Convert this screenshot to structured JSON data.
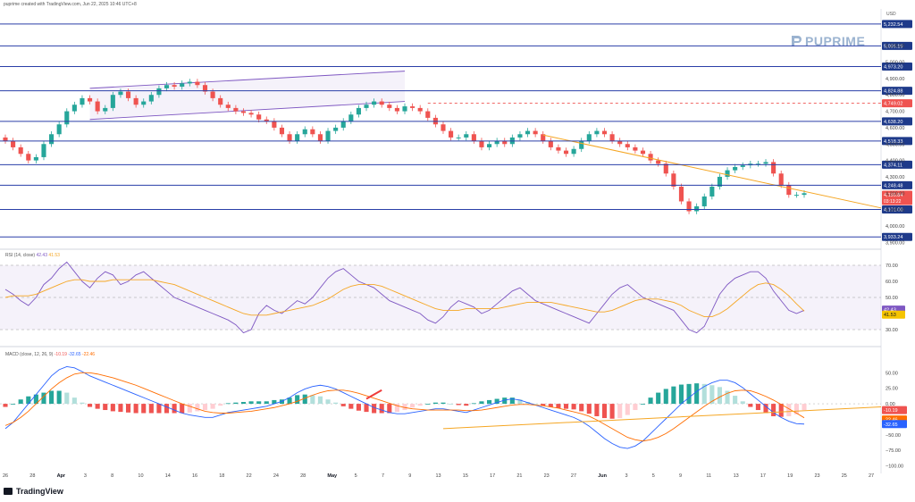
{
  "header": {
    "created": "puprime created with TradingView.com, Jun 22, 2025 10:46 UTC+8",
    "currency": "USD",
    "watermark": "PUPRIME",
    "footer": "TradingView"
  },
  "chart_data": [
    {
      "type": "candlestick",
      "title": "",
      "x_tick_labels": [
        "26",
        "28",
        "Apr",
        "3",
        "8",
        "10",
        "14",
        "16",
        "18",
        "22",
        "24",
        "28",
        "May",
        "5",
        "7",
        "9",
        "13",
        "15",
        "17",
        "21",
        "23",
        "27",
        "Jun",
        "3",
        "5",
        "9",
        "11",
        "13",
        "17",
        "19",
        "23",
        "25",
        "27"
      ],
      "y_tick_labels": [
        "5,100.00",
        "5,000.00",
        "4,900.00",
        "4,800.00",
        "4,700.00",
        "4,600.00",
        "4,500.00",
        "4,400.00",
        "4,300.00",
        "4,200.00",
        "4,100.00",
        "4,000.00",
        "3,900.00"
      ],
      "ylim": [
        3880,
        5270
      ],
      "horizontal_levels": [
        5232.54,
        5099.19,
        4973.2,
        4824.88,
        4638.2,
        4518.33,
        4374.11,
        4248.48,
        4101.0,
        3933.24
      ],
      "level_labels": [
        "5,232.54",
        "5,099.19",
        "4,973.20",
        "4,824.88",
        "4,638.20",
        "4,518.33",
        "4,374.11",
        "4,248.48",
        "4,101.00",
        "3,933.24"
      ],
      "resistance_dashed": 4749.02,
      "resistance_label": "4,749.02",
      "last_price": 4190.84,
      "last_price_label": "4,190.84",
      "countdown": "03:13:22",
      "closes": [
        4520,
        4480,
        4440,
        4400,
        4420,
        4500,
        4560,
        4620,
        4700,
        4740,
        4780,
        4760,
        4700,
        4720,
        4800,
        4820,
        4780,
        4740,
        4760,
        4800,
        4840,
        4860,
        4850,
        4870,
        4880,
        4860,
        4820,
        4780,
        4740,
        4720,
        4700,
        4690,
        4680,
        4650,
        4640,
        4600,
        4560,
        4520,
        4560,
        4590,
        4560,
        4520,
        4580,
        4600,
        4640,
        4680,
        4720,
        4740,
        4760,
        4740,
        4720,
        4700,
        4730,
        4720,
        4700,
        4660,
        4620,
        4580,
        4540,
        4540,
        4560,
        4520,
        4480,
        4500,
        4520,
        4500,
        4540,
        4560,
        4580,
        4560,
        4520,
        4480,
        4460,
        4440,
        4470,
        4520,
        4560,
        4580,
        4560,
        4520,
        4500,
        4480,
        4460,
        4440,
        4400,
        4380,
        4320,
        4240,
        4150,
        4090,
        4120,
        4180,
        4240,
        4300,
        4340,
        4360,
        4370,
        4380,
        4380,
        4390,
        4320,
        4250,
        4190,
        4190,
        4200
      ]
    },
    {
      "type": "line",
      "title": "RSI (14, close)",
      "series": [
        {
          "name": "RSI",
          "last": 42.43,
          "last_label": "42.43",
          "color": "#7e57c2"
        },
        {
          "name": "RSI MA",
          "last": 41.53,
          "last_label": "41.53",
          "color": "#f5a623"
        }
      ],
      "bands": [
        70,
        50,
        30
      ],
      "y_tick_labels": [
        "70.00",
        "60.00",
        "50.00",
        "40.00",
        "30.00"
      ],
      "ylim": [
        25,
        75
      ],
      "rsi": [
        55,
        52,
        48,
        45,
        50,
        58,
        62,
        68,
        72,
        66,
        60,
        56,
        62,
        66,
        64,
        58,
        60,
        64,
        66,
        62,
        58,
        54,
        50,
        48,
        46,
        44,
        42,
        40,
        38,
        36,
        33,
        28,
        30,
        40,
        45,
        42,
        40,
        44,
        48,
        46,
        50,
        56,
        62,
        66,
        68,
        64,
        60,
        58,
        56,
        52,
        48,
        46,
        44,
        42,
        40,
        36,
        34,
        38,
        44,
        48,
        46,
        44,
        40,
        42,
        46,
        50,
        54,
        56,
        52,
        48,
        46,
        44,
        42,
        40,
        38,
        36,
        34,
        40,
        46,
        52,
        56,
        58,
        54,
        50,
        48,
        46,
        44,
        42,
        36,
        30,
        28,
        32,
        42,
        52,
        58,
        62,
        64,
        66,
        66,
        62,
        54,
        48,
        42,
        40,
        42
      ],
      "rsi_ma": [
        50,
        51,
        51,
        51,
        52,
        54,
        56,
        58,
        60,
        61,
        61,
        60,
        60,
        60,
        61,
        61,
        61,
        61,
        61,
        61,
        60,
        59,
        58,
        56,
        54,
        52,
        50,
        48,
        46,
        44,
        42,
        40,
        39,
        39,
        39,
        40,
        41,
        42,
        43,
        44,
        45,
        47,
        49,
        52,
        55,
        57,
        58,
        58,
        58,
        57,
        55,
        53,
        51,
        49,
        47,
        45,
        43,
        42,
        42,
        42,
        43,
        43,
        43,
        43,
        43,
        44,
        45,
        46,
        47,
        47,
        47,
        47,
        46,
        45,
        44,
        43,
        42,
        41,
        41,
        42,
        44,
        46,
        48,
        49,
        49,
        49,
        48,
        47,
        45,
        42,
        40,
        38,
        38,
        40,
        43,
        47,
        51,
        55,
        58,
        59,
        58,
        55,
        51,
        46,
        41.5
      ]
    },
    {
      "type": "bar",
      "title": "MACD (close, 12, 26, 9)",
      "series": [
        {
          "name": "Histogram",
          "last": -10.19,
          "last_label": "-10.19",
          "color": "#ef5350"
        },
        {
          "name": "MACD",
          "last": -32.65,
          "last_label": "-32.65",
          "color": "#2962ff"
        },
        {
          "name": "Signal",
          "last": -22.46,
          "last_label": "-22.46",
          "color": "#ff6d00"
        }
      ],
      "y_tick_labels": [
        "50.00",
        "25.00",
        "0.00",
        "−25.00",
        "−50.00",
        "−75.00",
        "−100.00"
      ],
      "ylim": [
        -105,
        75
      ],
      "macd": [
        -40,
        -30,
        -15,
        0,
        15,
        30,
        45,
        55,
        60,
        58,
        52,
        45,
        40,
        35,
        30,
        25,
        20,
        15,
        10,
        5,
        0,
        -5,
        -10,
        -15,
        -18,
        -20,
        -22,
        -22,
        -18,
        -14,
        -12,
        -10,
        -8,
        -6,
        -4,
        0,
        4,
        10,
        18,
        24,
        28,
        30,
        28,
        24,
        18,
        12,
        6,
        0,
        -6,
        -10,
        -14,
        -16,
        -16,
        -14,
        -12,
        -10,
        -8,
        -8,
        -10,
        -12,
        -14,
        -10,
        -6,
        -2,
        2,
        6,
        8,
        6,
        2,
        -2,
        -6,
        -10,
        -14,
        -18,
        -22,
        -28,
        -36,
        -46,
        -56,
        -64,
        -70,
        -72,
        -68,
        -60,
        -48,
        -36,
        -24,
        -12,
        0,
        10,
        20,
        28,
        34,
        38,
        38,
        34,
        26,
        16,
        6,
        -4,
        -14,
        -22,
        -28,
        -32,
        -32.65
      ],
      "signal": [
        -35,
        -30,
        -22,
        -12,
        0,
        12,
        24,
        34,
        42,
        48,
        50,
        50,
        48,
        45,
        42,
        38,
        34,
        30,
        25,
        20,
        15,
        10,
        5,
        0,
        -4,
        -8,
        -12,
        -14,
        -15,
        -15,
        -14,
        -13,
        -12,
        -10,
        -8,
        -6,
        -3,
        0,
        4,
        9,
        14,
        18,
        21,
        22,
        22,
        20,
        17,
        13,
        9,
        5,
        1,
        -3,
        -6,
        -8,
        -9,
        -10,
        -10,
        -10,
        -10,
        -10,
        -11,
        -11,
        -10,
        -8,
        -6,
        -4,
        -2,
        -1,
        -1,
        -2,
        -3,
        -5,
        -7,
        -10,
        -13,
        -16,
        -20,
        -26,
        -33,
        -40,
        -47,
        -54,
        -58,
        -60,
        -58,
        -54,
        -48,
        -40,
        -31,
        -22,
        -13,
        -4,
        4,
        11,
        17,
        21,
        22,
        21,
        17,
        12,
        6,
        -1,
        -8,
        -15,
        -22.46
      ],
      "histogram": [
        -5,
        0,
        7,
        12,
        15,
        18,
        21,
        21,
        18,
        10,
        2,
        -5,
        -8,
        -10,
        -12,
        -13,
        -14,
        -15,
        -15,
        -15,
        -15,
        -15,
        -15,
        -15,
        -14,
        -12,
        -10,
        -8,
        -3,
        1,
        2,
        3,
        4,
        4,
        4,
        6,
        7,
        10,
        14,
        15,
        14,
        12,
        7,
        2,
        -4,
        -8,
        -11,
        -13,
        -15,
        -15,
        -15,
        -13,
        -10,
        -6,
        -3,
        0,
        2,
        2,
        0,
        -2,
        -3,
        1,
        4,
        6,
        8,
        10,
        10,
        7,
        3,
        0,
        -3,
        -5,
        -7,
        -8,
        -9,
        -12,
        -16,
        -20,
        -23,
        -24,
        -23,
        -18,
        -10,
        0,
        10,
        18,
        24,
        28,
        31,
        32,
        33,
        32,
        30,
        27,
        21,
        13,
        4,
        -5,
        -10,
        -15,
        -20,
        -21,
        -20,
        -17,
        -10.19
      ]
    }
  ],
  "annotations": {
    "channel": "ascending channel",
    "trendline": "descending trendline",
    "macd_trendline": "rising support line"
  }
}
